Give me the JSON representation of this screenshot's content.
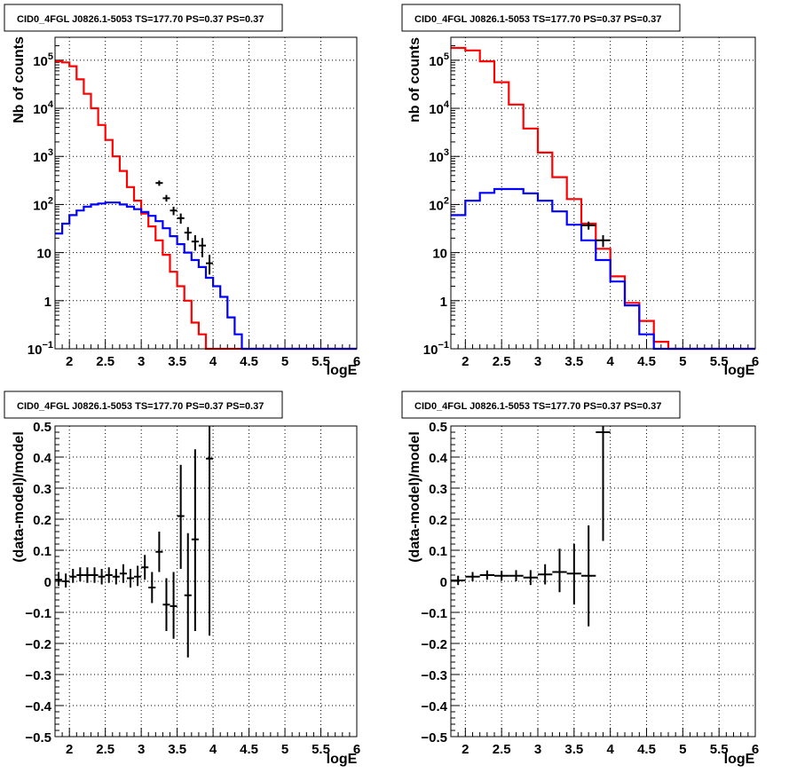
{
  "chart_data": [
    {
      "type": "line",
      "title": "CID0_4FGL J0826.1-5053 TS=177.70 PS=0.37 PS=0.37",
      "xlabel": "logE",
      "ylabel": "Nb of counts",
      "yscale": "log",
      "xlim": [
        1.8,
        6.0
      ],
      "ylim": [
        0.1,
        300000
      ],
      "grid": true,
      "xticks": [
        "2",
        "2.5",
        "3",
        "3.5",
        "4",
        "4.5",
        "5",
        "5.5",
        "6"
      ],
      "yticks": [
        {
          "v": 0.1,
          "base": "10",
          "exp": "−1"
        },
        {
          "v": 1,
          "base": "1",
          "exp": ""
        },
        {
          "v": 10,
          "base": "10",
          "exp": ""
        },
        {
          "v": 100,
          "base": "10",
          "exp": "2"
        },
        {
          "v": 1000,
          "base": "10",
          "exp": "3"
        },
        {
          "v": 10000,
          "base": "10",
          "exp": "4"
        },
        {
          "v": 100000,
          "base": "10",
          "exp": "5"
        }
      ],
      "bin_edges": [
        1.8,
        1.9,
        2.0,
        2.1,
        2.2,
        2.3,
        2.4,
        2.5,
        2.6,
        2.7,
        2.8,
        2.9,
        3.0,
        3.1,
        3.2,
        3.3,
        3.4,
        3.5,
        3.6,
        3.7,
        3.8,
        3.9,
        4.0,
        4.1,
        4.2,
        4.3,
        4.4,
        4.5,
        4.6,
        4.7,
        4.8,
        4.9,
        5.0,
        5.1,
        5.2,
        5.3,
        5.4,
        5.5,
        5.6,
        5.7,
        5.8,
        5.9,
        6.0
      ],
      "series": [
        {
          "color": "#ff0000",
          "values": [
            95000,
            90000,
            75000,
            40000,
            20000,
            10000,
            4500,
            2200,
            1000,
            500,
            230,
            120,
            65,
            35,
            18,
            9,
            4,
            2,
            1,
            0.35,
            0.2,
            0.1,
            0.1,
            0.1,
            0.1,
            0.1,
            0.1,
            0.1,
            0.1,
            0.1,
            0.1,
            0.1,
            0.1,
            0.1,
            0.1,
            0.1,
            0.1,
            0.1,
            0.1,
            0.1,
            0.1,
            0.1
          ]
        },
        {
          "color": "#0000ff",
          "values": [
            25,
            40,
            60,
            75,
            90,
            100,
            105,
            110,
            110,
            100,
            90,
            80,
            70,
            58,
            45,
            32,
            22,
            15,
            10,
            7,
            5,
            3,
            2,
            1.2,
            0.45,
            0.2,
            0.1,
            0.1,
            0.1,
            0.1,
            0.1,
            0.1,
            0.1,
            0.1,
            0.1,
            0.1,
            0.1,
            0.1,
            0.1,
            0.1,
            0.1,
            0.1
          ]
        }
      ],
      "points": [
        {
          "x": 3.25,
          "y": 280,
          "xerr": 0.05,
          "ylo": 245,
          "yhi": 315
        },
        {
          "x": 3.35,
          "y": 135,
          "xerr": 0.05,
          "ylo": 115,
          "yhi": 158
        },
        {
          "x": 3.45,
          "y": 75,
          "xerr": 0.05,
          "ylo": 60,
          "yhi": 90
        },
        {
          "x": 3.55,
          "y": 52,
          "xerr": 0.05,
          "ylo": 40,
          "yhi": 65
        },
        {
          "x": 3.65,
          "y": 26,
          "xerr": 0.05,
          "ylo": 18,
          "yhi": 34
        },
        {
          "x": 3.75,
          "y": 17,
          "xerr": 0.05,
          "ylo": 11,
          "yhi": 23
        },
        {
          "x": 3.85,
          "y": 14,
          "xerr": 0.05,
          "ylo": 8,
          "yhi": 20
        },
        {
          "x": 3.95,
          "y": 6,
          "xerr": 0.05,
          "ylo": 3.5,
          "yhi": 9
        }
      ]
    },
    {
      "type": "line",
      "title": "CID0_4FGL J0826.1-5053 TS=177.70 PS=0.37 PS=0.37",
      "xlabel": "logE",
      "ylabel": "nb of counts",
      "yscale": "log",
      "xlim": [
        1.8,
        6.0
      ],
      "ylim": [
        0.1,
        300000
      ],
      "grid": true,
      "xticks": [
        "2",
        "2.5",
        "3",
        "3.5",
        "4",
        "4.5",
        "5",
        "5.5",
        "6"
      ],
      "yticks": [
        {
          "v": 0.1,
          "base": "10",
          "exp": "−1"
        },
        {
          "v": 1,
          "base": "1",
          "exp": ""
        },
        {
          "v": 10,
          "base": "10",
          "exp": ""
        },
        {
          "v": 100,
          "base": "10",
          "exp": "2"
        },
        {
          "v": 1000,
          "base": "10",
          "exp": "3"
        },
        {
          "v": 10000,
          "base": "10",
          "exp": "4"
        },
        {
          "v": 100000,
          "base": "10",
          "exp": "5"
        }
      ],
      "bin_edges": [
        1.8,
        2.0,
        2.2,
        2.4,
        2.6,
        2.8,
        3.0,
        3.2,
        3.4,
        3.6,
        3.8,
        4.0,
        4.2,
        4.4,
        4.6,
        4.8,
        5.0,
        5.2,
        5.4,
        5.6,
        5.8,
        6.0
      ],
      "series": [
        {
          "color": "#ff0000",
          "values": [
            180000,
            160000,
            95000,
            35000,
            12000,
            3800,
            1200,
            370,
            130,
            40,
            12,
            3.2,
            0.9,
            0.38,
            0.14,
            0.1,
            0.1,
            0.1,
            0.1,
            0.1,
            0.1
          ]
        },
        {
          "color": "#0000ff",
          "values": [
            60,
            120,
            175,
            210,
            210,
            170,
            120,
            72,
            38,
            18,
            7,
            2.5,
            0.8,
            0.2,
            0.1,
            0.1,
            0.1,
            0.1,
            0.1,
            0.1,
            0.1
          ]
        }
      ],
      "points": [
        {
          "x": 3.7,
          "y": 37,
          "xerr": 0.1,
          "ylo": 30,
          "yhi": 44
        },
        {
          "x": 3.9,
          "y": 18,
          "xerr": 0.1,
          "ylo": 13,
          "yhi": 23
        }
      ]
    },
    {
      "type": "scatter",
      "title": "CID0_4FGL J0826.1-5053 TS=177.70 PS=0.37 PS=0.37",
      "xlabel": "logE",
      "ylabel": "(data-model)/model",
      "yscale": "linear",
      "xlim": [
        1.8,
        6.0
      ],
      "ylim": [
        -0.5,
        0.5
      ],
      "grid": true,
      "xticks": [
        "2",
        "2.5",
        "3",
        "3.5",
        "4",
        "4.5",
        "5",
        "5.5",
        "6"
      ],
      "yticks": [
        {
          "v": -0.5,
          "base": "−0.5",
          "exp": ""
        },
        {
          "v": -0.4,
          "base": "−0.4",
          "exp": ""
        },
        {
          "v": -0.3,
          "base": "−0.3",
          "exp": ""
        },
        {
          "v": -0.2,
          "base": "−0.2",
          "exp": ""
        },
        {
          "v": -0.1,
          "base": "−0.1",
          "exp": ""
        },
        {
          "v": 0,
          "base": "0",
          "exp": ""
        },
        {
          "v": 0.1,
          "base": "0.1",
          "exp": ""
        },
        {
          "v": 0.2,
          "base": "0.2",
          "exp": ""
        },
        {
          "v": 0.3,
          "base": "0.3",
          "exp": ""
        },
        {
          "v": 0.4,
          "base": "0.4",
          "exp": ""
        },
        {
          "v": 0.5,
          "base": "0.5",
          "exp": ""
        }
      ],
      "points": [
        {
          "x": 1.85,
          "y": 0.005,
          "xerr": 0.05,
          "ylo": -0.015,
          "yhi": 0.03
        },
        {
          "x": 1.95,
          "y": 0.0,
          "xerr": 0.05,
          "ylo": -0.02,
          "yhi": 0.025
        },
        {
          "x": 2.05,
          "y": 0.015,
          "xerr": 0.05,
          "ylo": -0.005,
          "yhi": 0.04
        },
        {
          "x": 2.15,
          "y": 0.02,
          "xerr": 0.05,
          "ylo": 0.0,
          "yhi": 0.045
        },
        {
          "x": 2.25,
          "y": 0.02,
          "xerr": 0.05,
          "ylo": -0.005,
          "yhi": 0.045
        },
        {
          "x": 2.35,
          "y": 0.02,
          "xerr": 0.05,
          "ylo": -0.005,
          "yhi": 0.045
        },
        {
          "x": 2.45,
          "y": 0.015,
          "xerr": 0.05,
          "ylo": -0.01,
          "yhi": 0.04
        },
        {
          "x": 2.55,
          "y": 0.02,
          "xerr": 0.05,
          "ylo": -0.005,
          "yhi": 0.045
        },
        {
          "x": 2.65,
          "y": 0.015,
          "xerr": 0.05,
          "ylo": -0.01,
          "yhi": 0.04
        },
        {
          "x": 2.75,
          "y": 0.025,
          "xerr": 0.05,
          "ylo": -0.005,
          "yhi": 0.055
        },
        {
          "x": 2.85,
          "y": 0.01,
          "xerr": 0.05,
          "ylo": -0.02,
          "yhi": 0.04
        },
        {
          "x": 2.95,
          "y": 0.015,
          "xerr": 0.05,
          "ylo": -0.015,
          "yhi": 0.05
        },
        {
          "x": 3.05,
          "y": 0.045,
          "xerr": 0.05,
          "ylo": 0.005,
          "yhi": 0.085
        },
        {
          "x": 3.15,
          "y": -0.02,
          "xerr": 0.05,
          "ylo": -0.07,
          "yhi": 0.03
        },
        {
          "x": 3.25,
          "y": 0.095,
          "xerr": 0.05,
          "ylo": 0.03,
          "yhi": 0.16
        },
        {
          "x": 3.35,
          "y": -0.075,
          "xerr": 0.05,
          "ylo": -0.16,
          "yhi": 0.01
        },
        {
          "x": 3.45,
          "y": -0.08,
          "xerr": 0.05,
          "ylo": -0.185,
          "yhi": 0.03
        },
        {
          "x": 3.55,
          "y": 0.21,
          "xerr": 0.05,
          "ylo": 0.04,
          "yhi": 0.375
        },
        {
          "x": 3.65,
          "y": -0.045,
          "xerr": 0.05,
          "ylo": -0.245,
          "yhi": 0.155
        },
        {
          "x": 3.75,
          "y": 0.135,
          "xerr": 0.05,
          "ylo": -0.16,
          "yhi": 0.425
        },
        {
          "x": 3.95,
          "y": 0.395,
          "xerr": 0.05,
          "ylo": -0.175,
          "yhi": 0.5
        }
      ]
    },
    {
      "type": "scatter",
      "title": "CID0_4FGL J0826.1-5053 TS=177.70 PS=0.37 PS=0.37",
      "xlabel": "logE",
      "ylabel": "(data-model)/model",
      "yscale": "linear",
      "xlim": [
        1.8,
        6.0
      ],
      "ylim": [
        -0.5,
        0.5
      ],
      "grid": true,
      "xticks": [
        "2",
        "2.5",
        "3",
        "3.5",
        "4",
        "4.5",
        "5",
        "5.5",
        "6"
      ],
      "yticks": [
        {
          "v": -0.5,
          "base": "−0.5",
          "exp": ""
        },
        {
          "v": -0.4,
          "base": "−0.4",
          "exp": ""
        },
        {
          "v": -0.3,
          "base": "−0.3",
          "exp": ""
        },
        {
          "v": -0.2,
          "base": "−0.2",
          "exp": ""
        },
        {
          "v": -0.1,
          "base": "−0.1",
          "exp": ""
        },
        {
          "v": 0,
          "base": "0",
          "exp": ""
        },
        {
          "v": 0.1,
          "base": "0.1",
          "exp": ""
        },
        {
          "v": 0.2,
          "base": "0.2",
          "exp": ""
        },
        {
          "v": 0.3,
          "base": "0.3",
          "exp": ""
        },
        {
          "v": 0.4,
          "base": "0.4",
          "exp": ""
        },
        {
          "v": 0.5,
          "base": "0.5",
          "exp": ""
        }
      ],
      "points": [
        {
          "x": 1.9,
          "y": 0.003,
          "xerr": 0.1,
          "ylo": -0.012,
          "yhi": 0.018
        },
        {
          "x": 2.1,
          "y": 0.015,
          "xerr": 0.1,
          "ylo": 0.0,
          "yhi": 0.03
        },
        {
          "x": 2.3,
          "y": 0.02,
          "xerr": 0.1,
          "ylo": 0.005,
          "yhi": 0.035
        },
        {
          "x": 2.5,
          "y": 0.018,
          "xerr": 0.1,
          "ylo": 0.002,
          "yhi": 0.034
        },
        {
          "x": 2.7,
          "y": 0.018,
          "xerr": 0.1,
          "ylo": 0.0,
          "yhi": 0.036
        },
        {
          "x": 2.9,
          "y": 0.012,
          "xerr": 0.1,
          "ylo": -0.012,
          "yhi": 0.036
        },
        {
          "x": 3.1,
          "y": 0.022,
          "xerr": 0.1,
          "ylo": -0.01,
          "yhi": 0.055
        },
        {
          "x": 3.3,
          "y": 0.03,
          "xerr": 0.1,
          "ylo": -0.035,
          "yhi": 0.105
        },
        {
          "x": 3.5,
          "y": 0.025,
          "xerr": 0.1,
          "ylo": -0.075,
          "yhi": 0.12
        },
        {
          "x": 3.7,
          "y": 0.018,
          "xerr": 0.1,
          "ylo": -0.145,
          "yhi": 0.18
        },
        {
          "x": 3.9,
          "y": 0.48,
          "xerr": 0.1,
          "ylo": 0.13,
          "yhi": 0.5
        }
      ]
    }
  ]
}
